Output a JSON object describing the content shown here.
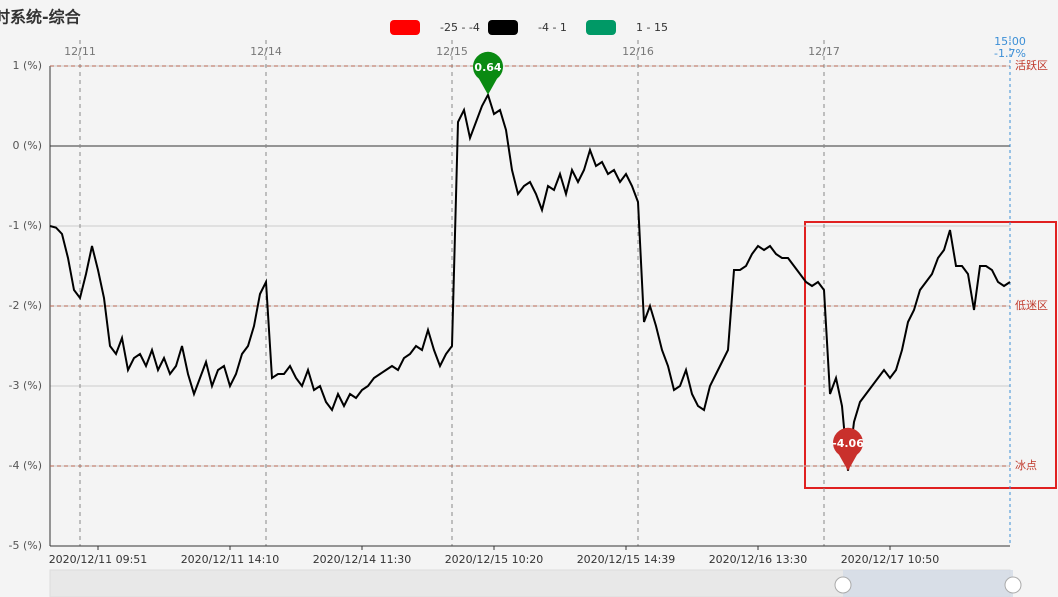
{
  "chart_data": {
    "type": "line",
    "title": "时系统-综合",
    "legend": [
      {
        "label": "-25 - -4",
        "color": "#ff0000"
      },
      {
        "label": "-4 - 1",
        "color": "#000000"
      },
      {
        "label": "1 - 15",
        "color": "#009966"
      }
    ],
    "series": [
      {
        "color": "#000000",
        "values": [
          -1.0,
          -1.02,
          -1.1,
          -1.4,
          -1.8,
          -1.9,
          -1.6,
          -1.25,
          -1.55,
          -1.9,
          -2.5,
          -2.6,
          -2.4,
          -2.8,
          -2.65,
          -2.6,
          -2.75,
          -2.55,
          -2.8,
          -2.65,
          -2.85,
          -2.75,
          -2.5,
          -2.85,
          -3.1,
          -2.9,
          -2.7,
          -3.0,
          -2.8,
          -2.75,
          -3.0,
          -2.85,
          -2.6,
          -2.5,
          -2.25,
          -1.85,
          -1.7,
          -2.9,
          -2.85,
          -2.85,
          -2.75,
          -2.9,
          -3.0,
          -2.8,
          -3.05,
          -3.0,
          -3.2,
          -3.3,
          -3.1,
          -3.25,
          -3.1,
          -3.15,
          -3.05,
          -3.0,
          -2.9,
          -2.85,
          -2.8,
          -2.75,
          -2.8,
          -2.65,
          -2.6,
          -2.5,
          -2.55,
          -2.3,
          -2.55,
          -2.75,
          -2.6,
          -2.5,
          0.3,
          0.45,
          0.1,
          0.3,
          0.5,
          0.64,
          0.4,
          0.45,
          0.2,
          -0.3,
          -0.6,
          -0.5,
          -0.45,
          -0.6,
          -0.8,
          -0.5,
          -0.55,
          -0.35,
          -0.6,
          -0.3,
          -0.45,
          -0.3,
          -0.05,
          -0.25,
          -0.2,
          -0.35,
          -0.3,
          -0.45,
          -0.35,
          -0.5,
          -0.7,
          -2.2,
          -2.0,
          -2.25,
          -2.55,
          -2.75,
          -3.05,
          -3.0,
          -2.8,
          -3.1,
          -3.25,
          -3.3,
          -3.0,
          -2.85,
          -2.7,
          -2.55,
          -1.55,
          -1.55,
          -1.5,
          -1.35,
          -1.25,
          -1.3,
          -1.25,
          -1.35,
          -1.4,
          -1.4,
          -1.5,
          -1.6,
          -1.7,
          -1.75,
          -1.7,
          -1.8,
          -3.1,
          -2.9,
          -3.25,
          -4.06,
          -3.45,
          -3.2,
          -3.1,
          -3.0,
          -2.9,
          -2.8,
          -2.9,
          -2.8,
          -2.55,
          -2.2,
          -2.05,
          -1.8,
          -1.7,
          -1.6,
          -1.4,
          -1.3,
          -1.05,
          -1.5,
          -1.5,
          -1.6,
          -2.05,
          -1.5,
          -1.5,
          -1.55,
          -1.7,
          -1.75,
          -1.7
        ]
      }
    ],
    "xlim": [
      0,
      160
    ],
    "xticks": [
      {
        "value": 8,
        "label": "2020/12/11 09:51"
      },
      {
        "value": 30,
        "label": "2020/12/11 14:10"
      },
      {
        "value": 52,
        "label": "2020/12/14 11:30"
      },
      {
        "value": 74,
        "label": "2020/12/15 10:20"
      },
      {
        "value": 96,
        "label": "2020/12/15 14:39"
      },
      {
        "value": 118,
        "label": "2020/12/16 13:30"
      },
      {
        "value": 140,
        "label": "2020/12/17 10:50"
      }
    ],
    "day_ticks": [
      {
        "value": 5,
        "label": "12/11"
      },
      {
        "value": 36,
        "label": "12/14"
      },
      {
        "value": 67,
        "label": "12/15"
      },
      {
        "value": 98,
        "label": "12/16"
      },
      {
        "value": 129,
        "label": "12/17"
      }
    ],
    "ylim": [
      -5,
      1
    ],
    "yticks": [
      {
        "value": 1,
        "label": "1 (%)"
      },
      {
        "value": 0,
        "label": "0 (%)"
      },
      {
        "value": -1,
        "label": "-1 (%)"
      },
      {
        "value": -2,
        "label": "-2 (%)"
      },
      {
        "value": -3,
        "label": "-3 (%)"
      },
      {
        "value": -4,
        "label": "-4 (%)"
      },
      {
        "value": -5,
        "label": "-5 (%)"
      }
    ],
    "mark_lines": [
      {
        "value": 1,
        "label": "活跃区"
      },
      {
        "value": -2,
        "label": "低迷区"
      },
      {
        "value": -4,
        "label": "冰点"
      }
    ],
    "mark_points": [
      {
        "index": 73,
        "color": "#0a8a12"
      },
      {
        "index": 133,
        "color": "#c9302c"
      }
    ],
    "end_label": {
      "index": 160,
      "time": "15:00",
      "value": -1.7,
      "label": "-1.7%"
    }
  }
}
